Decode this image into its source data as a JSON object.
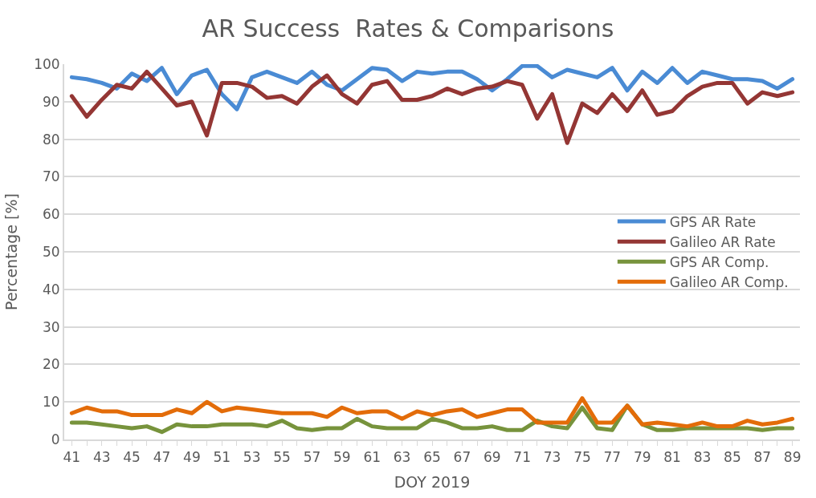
{
  "chart_data": {
    "type": "line",
    "title": "AR Success  Rates & Comparisons",
    "xlabel": "DOY 2019",
    "ylabel": "Percentage [%]",
    "x": [
      41,
      42,
      43,
      44,
      45,
      46,
      47,
      48,
      49,
      50,
      51,
      52,
      53,
      54,
      55,
      56,
      57,
      58,
      59,
      60,
      61,
      62,
      63,
      64,
      65,
      66,
      67,
      68,
      69,
      70,
      71,
      72,
      73,
      74,
      75,
      76,
      77,
      78,
      79,
      80,
      81,
      82,
      83,
      84,
      85,
      86,
      87,
      88,
      89
    ],
    "series": [
      {
        "name": "GPS AR Rate",
        "color": "#4a8bd4",
        "values": [
          96.5,
          96,
          95,
          93.5,
          97.5,
          95.5,
          99,
          92,
          97,
          98.5,
          92,
          88,
          96.5,
          98,
          96.5,
          95,
          98,
          94.5,
          93,
          96,
          99,
          98.5,
          95.5,
          98,
          97.5,
          98,
          98,
          96,
          93,
          96,
          99.5,
          99.5,
          96.5,
          98.5,
          97.5,
          96.5,
          99,
          93,
          98,
          95,
          99,
          95,
          98,
          97,
          96,
          96,
          95.5,
          93.5,
          96
        ]
      },
      {
        "name": "Galileo AR Rate",
        "color": "#943634",
        "values": [
          91.5,
          86,
          90.5,
          94.5,
          93.5,
          98,
          93.5,
          89,
          90,
          81,
          95,
          95,
          94,
          91,
          91.5,
          89.5,
          94,
          97,
          92,
          89.5,
          94.5,
          95.5,
          90.5,
          90.5,
          91.5,
          93.5,
          92,
          93.5,
          94,
          95.5,
          94.5,
          85.5,
          92,
          79,
          89.5,
          87,
          92,
          87.5,
          93,
          86.5,
          87.5,
          91.5,
          94,
          95,
          95,
          89.5,
          92.5,
          91.5,
          92.5
        ]
      },
      {
        "name": "GPS AR Comp.",
        "color": "#77933c",
        "values": [
          4.5,
          4.5,
          4,
          3.5,
          3,
          3.5,
          2,
          4,
          3.5,
          3.5,
          4,
          4,
          4,
          3.5,
          5,
          3,
          2.5,
          3,
          3,
          5.5,
          3.5,
          3,
          3,
          3,
          5.5,
          4.5,
          3,
          3,
          3.5,
          2.5,
          2.5,
          5,
          3.5,
          3,
          8.5,
          3,
          2.5,
          9,
          4,
          2.5,
          2.5,
          3,
          3,
          3,
          3,
          3,
          2.5,
          3,
          3
        ]
      },
      {
        "name": "Galileo AR Comp.",
        "color": "#e36c09",
        "values": [
          7,
          8.5,
          7.5,
          7.5,
          6.5,
          6.5,
          6.5,
          8,
          7,
          10,
          7.5,
          8.5,
          8,
          7.5,
          7,
          7,
          7,
          6,
          8.5,
          7,
          7.5,
          7.5,
          5.5,
          7.5,
          6.5,
          7.5,
          8,
          6,
          7,
          8,
          8,
          4.5,
          4.5,
          4.5,
          11,
          4.5,
          4.5,
          9,
          4,
          4.5,
          4,
          3.5,
          4.5,
          3.5,
          3.5,
          5,
          4,
          4.5,
          5.5
        ]
      }
    ],
    "xlim": [
      40.5,
      89.5
    ],
    "xticks": [
      41,
      {
        "value": 42,
        "label": null
      },
      43,
      {
        "value": 44,
        "label": null
      },
      45,
      {
        "value": 46,
        "label": null
      },
      47,
      {
        "value": 48,
        "label": null
      },
      49,
      {
        "value": 50,
        "label": null
      },
      51,
      {
        "value": 52,
        "label": null
      },
      53,
      {
        "value": 54,
        "label": null
      },
      55,
      {
        "value": 56,
        "label": null
      },
      57,
      {
        "value": 58,
        "label": null
      },
      59,
      {
        "value": 60,
        "label": null
      },
      61,
      {
        "value": 62,
        "label": null
      },
      63,
      {
        "value": 64,
        "label": null
      },
      65,
      {
        "value": 66,
        "label": null
      },
      67,
      {
        "value": 68,
        "label": null
      },
      69,
      {
        "value": 70,
        "label": null
      },
      71,
      {
        "value": 72,
        "label": null
      },
      73,
      {
        "value": 74,
        "label": null
      },
      75,
      {
        "value": 76,
        "label": null
      },
      77,
      {
        "value": 78,
        "label": null
      },
      79,
      {
        "value": 80,
        "label": null
      },
      81,
      {
        "value": 82,
        "label": null
      },
      83,
      {
        "value": 84,
        "label": null
      },
      85,
      {
        "value": 86,
        "label": null
      },
      87,
      {
        "value": 88,
        "label": null
      },
      89
    ],
    "ylim": [
      0,
      100
    ],
    "yticks": [
      0,
      10,
      20,
      30,
      40,
      50,
      60,
      70,
      80,
      90,
      100
    ],
    "grid": "y",
    "legend": "right",
    "marker": "none",
    "line_style": "solid"
  }
}
